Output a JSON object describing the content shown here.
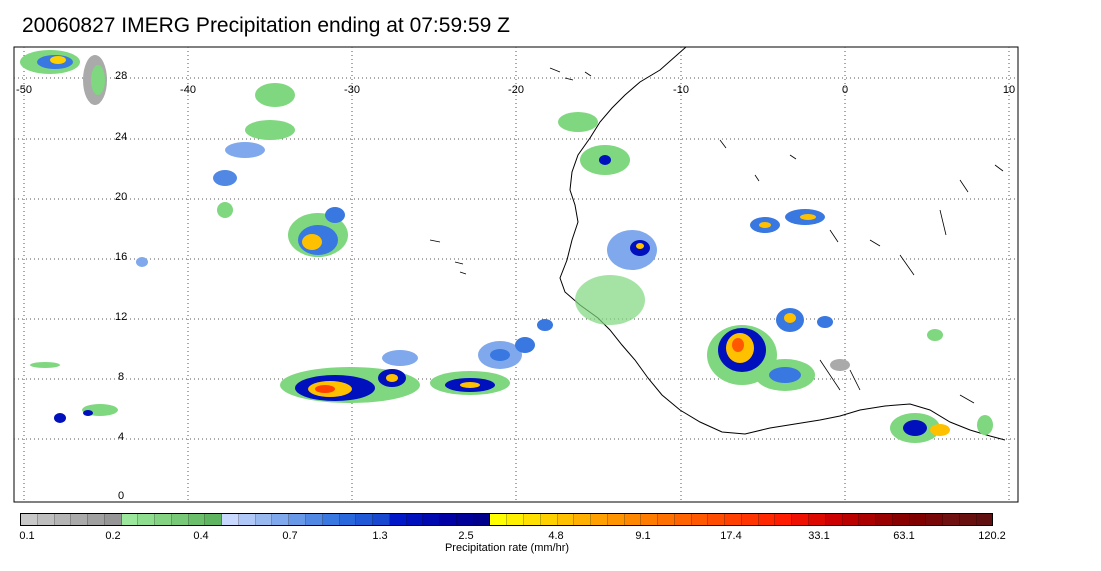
{
  "title": "20060827 IMERG Precipitation ending at 07:59:59 Z",
  "lon_labels": [
    "-50",
    "-40",
    "-30",
    "-20",
    "-10",
    "0",
    "10"
  ],
  "lat_labels": [
    "28",
    "24",
    "20",
    "16",
    "12",
    "8",
    "4",
    "0"
  ],
  "colorbar": {
    "label": "Precipitation rate (mm/hr)",
    "ticks": [
      "0.1",
      "0.2",
      "0.4",
      "0.7",
      "1.3",
      "2.5",
      "4.8",
      "9.1",
      "17.4",
      "33.1",
      "63.1",
      "120.2"
    ],
    "colors": [
      "#c8c8c8",
      "#bebebe",
      "#b4b4b4",
      "#aaaaaa",
      "#a0a0a0",
      "#969696",
      "#9be79b",
      "#8fdd8f",
      "#83d383",
      "#77c977",
      "#6bbf6b",
      "#5fb55f",
      "#c8d8ff",
      "#b0c8f8",
      "#98b8f0",
      "#80a8ec",
      "#6898e8",
      "#5088e4",
      "#3878e0",
      "#2868dc",
      "#2058d8",
      "#1848d0",
      "#0018c8",
      "#0010bc",
      "#0008b0",
      "#0000a4",
      "#000098",
      "#00008c",
      "#ffff00",
      "#fff000",
      "#ffe000",
      "#ffd000",
      "#ffc000",
      "#ffb000",
      "#ffa000",
      "#ff9400",
      "#ff8800",
      "#ff7c00",
      "#ff7000",
      "#ff6400",
      "#ff5800",
      "#ff4c00",
      "#ff4000",
      "#ff3400",
      "#ff2800",
      "#ff1c00",
      "#ee1000",
      "#dd0800",
      "#cc0000",
      "#bb0000",
      "#aa0000",
      "#990000",
      "#880000",
      "#800000",
      "#780808",
      "#701010",
      "#681010",
      "#601010"
    ]
  }
}
